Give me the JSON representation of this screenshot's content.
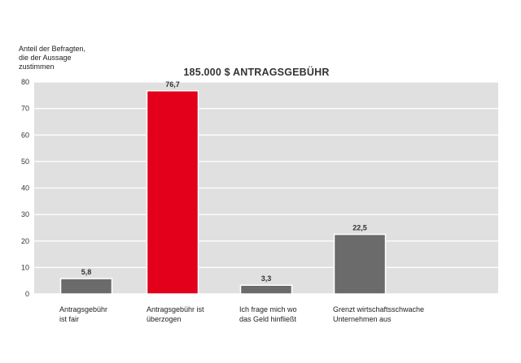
{
  "chart_data": {
    "type": "bar",
    "title": "185.000 $ ANTRAGSGEBÜHR",
    "ylabel": [
      "Anteil der Befragten,",
      "die der Aussage",
      "zustimmen"
    ],
    "xlabel": "",
    "ylim": [
      0,
      80
    ],
    "yticks": [
      "0",
      "10",
      "20",
      "30",
      "40",
      "50",
      "60",
      "70",
      "80"
    ],
    "grid": true,
    "categories": [
      [
        "Antragsgebühr",
        "ist fair"
      ],
      [
        "Antragsgebühr ist",
        "überzogen"
      ],
      [
        "Ich frage mich wo",
        "das Geld hinfließt"
      ],
      [
        "Grenzt wirtschaftsschwache",
        "Unternehmen aus"
      ]
    ],
    "values": [
      5.8,
      76.7,
      3.3,
      22.5
    ],
    "value_labels": [
      "5,8",
      "76,7",
      "3,3",
      "22,5"
    ],
    "colors": {
      "plot_background": "#e0e0e0",
      "gridline": "#ffffff",
      "bar_default": "#6b6b6b",
      "bar_highlight": "#e2001a",
      "highlight_index": 1
    }
  }
}
